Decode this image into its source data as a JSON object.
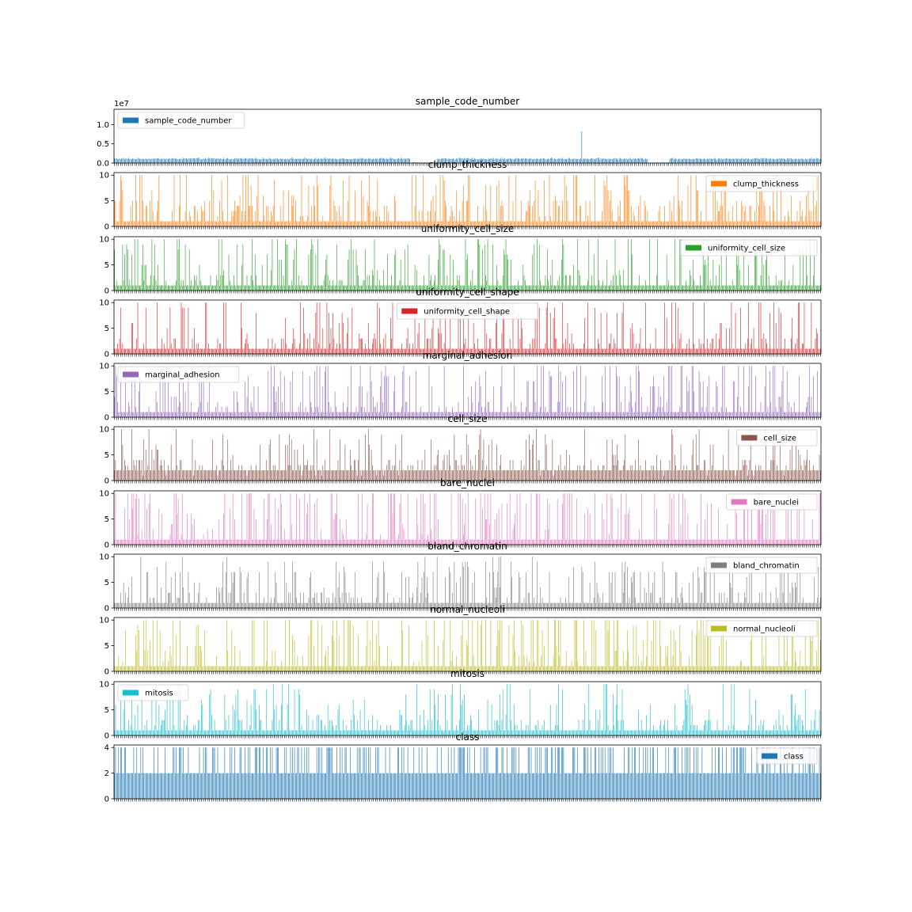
{
  "figure": {
    "x_tick_labels": "dense integer row indices (~700 bars), unreadable overlapping labels"
  },
  "chart_data": [
    {
      "type": "bar",
      "title": "sample_code_number",
      "series": [
        {
          "name": "sample_code_number",
          "color": "#1f77b4"
        }
      ],
      "ylim": [
        0,
        14000000
      ],
      "yticks": [
        0,
        5000000,
        10000000
      ],
      "ytick_labels": [
        "0.0",
        "0.5",
        "1.0"
      ],
      "offset_label": "1e7",
      "legend": "upper-left",
      "n_bars": 699,
      "typical_values": [
        1000025,
        1017023,
        1041801,
        1070935,
        1116116,
        1168736,
        1212422,
        1238021,
        1277792,
        1321942
      ],
      "outlier": {
        "index": 462,
        "value": 8233704
      },
      "low_value_runs": [
        [
          293,
          318
        ],
        [
          528,
          548
        ]
      ]
    },
    {
      "type": "bar",
      "title": "clump_thickness",
      "series": [
        {
          "name": "clump_thickness",
          "color": "#ff7f0e"
        }
      ],
      "ylim": [
        0,
        10.5
      ],
      "yticks": [
        0,
        5,
        10
      ],
      "ytick_labels": [
        "0",
        "5",
        "10"
      ],
      "legend": "upper-right",
      "n_bars": 699,
      "value_range": [
        1,
        10
      ],
      "common_values": [
        1,
        3,
        4,
        5,
        10
      ]
    },
    {
      "type": "bar",
      "title": "uniformity_cell_size",
      "series": [
        {
          "name": "uniformity_cell_size",
          "color": "#2ca02c"
        }
      ],
      "ylim": [
        0,
        10.5
      ],
      "yticks": [
        0,
        5,
        10
      ],
      "ytick_labels": [
        "0",
        "5",
        "10"
      ],
      "legend": "upper-right",
      "n_bars": 699,
      "value_range": [
        1,
        10
      ],
      "common_values": [
        1,
        2,
        3,
        10
      ]
    },
    {
      "type": "bar",
      "title": "uniformity_cell_shape",
      "series": [
        {
          "name": "uniformity_cell_shape",
          "color": "#d62728"
        }
      ],
      "ylim": [
        0,
        10.5
      ],
      "yticks": [
        0,
        5,
        10
      ],
      "ytick_labels": [
        "0",
        "5",
        "10"
      ],
      "legend": "upper-center",
      "n_bars": 699,
      "value_range": [
        1,
        10
      ],
      "common_values": [
        1,
        2,
        3,
        10
      ]
    },
    {
      "type": "bar",
      "title": "marginal_adhesion",
      "series": [
        {
          "name": "marginal_adhesion",
          "color": "#9467bd"
        }
      ],
      "ylim": [
        0,
        10.5
      ],
      "yticks": [
        0,
        5,
        10
      ],
      "ytick_labels": [
        "0",
        "5",
        "10"
      ],
      "legend": "upper-left",
      "n_bars": 699,
      "value_range": [
        1,
        10
      ],
      "common_values": [
        1,
        2,
        3,
        10
      ]
    },
    {
      "type": "bar",
      "title": "cell_size",
      "series": [
        {
          "name": "cell_size",
          "color": "#8c564b"
        }
      ],
      "ylim": [
        0,
        10.5
      ],
      "yticks": [
        0,
        5,
        10
      ],
      "ytick_labels": [
        "0",
        "5",
        "10"
      ],
      "legend": "upper-right",
      "n_bars": 699,
      "value_range": [
        1,
        10
      ],
      "common_values": [
        2,
        3,
        4
      ]
    },
    {
      "type": "bar",
      "title": "bare_nuclei",
      "series": [
        {
          "name": "bare_nuclei",
          "color": "#e377c2"
        }
      ],
      "ylim": [
        0,
        10.5
      ],
      "yticks": [
        0,
        5,
        10
      ],
      "ytick_labels": [
        "0",
        "5",
        "10"
      ],
      "legend": "upper-right",
      "n_bars": 699,
      "value_range": [
        1,
        10
      ],
      "common_values": [
        1,
        10
      ]
    },
    {
      "type": "bar",
      "title": "bland_chromatin",
      "series": [
        {
          "name": "bland_chromatin",
          "color": "#7f7f7f"
        }
      ],
      "ylim": [
        0,
        10.5
      ],
      "yticks": [
        0,
        5,
        10
      ],
      "ytick_labels": [
        "0",
        "5",
        "10"
      ],
      "legend": "upper-right",
      "n_bars": 699,
      "value_range": [
        1,
        10
      ],
      "common_values": [
        1,
        2,
        3,
        7
      ]
    },
    {
      "type": "bar",
      "title": "normal_nucleoli",
      "series": [
        {
          "name": "normal_nucleoli",
          "color": "#bcbd22"
        }
      ],
      "ylim": [
        0,
        10.5
      ],
      "yticks": [
        0,
        5,
        10
      ],
      "ytick_labels": [
        "0",
        "5",
        "10"
      ],
      "legend": "upper-right",
      "n_bars": 699,
      "value_range": [
        1,
        10
      ],
      "common_values": [
        1,
        10
      ]
    },
    {
      "type": "bar",
      "title": "mitosis",
      "series": [
        {
          "name": "mitosis",
          "color": "#17becf"
        }
      ],
      "ylim": [
        0,
        10.5
      ],
      "yticks": [
        0,
        5,
        10
      ],
      "ytick_labels": [
        "0",
        "5",
        "10"
      ],
      "legend": "upper-left",
      "n_bars": 699,
      "value_range": [
        1,
        10
      ],
      "common_values": [
        1,
        2,
        3
      ]
    },
    {
      "type": "bar",
      "title": "class",
      "series": [
        {
          "name": "class",
          "color": "#1f77b4"
        }
      ],
      "ylim": [
        0,
        4.2
      ],
      "yticks": [
        0,
        2,
        4
      ],
      "ytick_labels": [
        "0",
        "2",
        "4"
      ],
      "legend": "upper-right",
      "n_bars": 699,
      "values_set": [
        2,
        4
      ],
      "share_of_4": 0.345
    }
  ]
}
